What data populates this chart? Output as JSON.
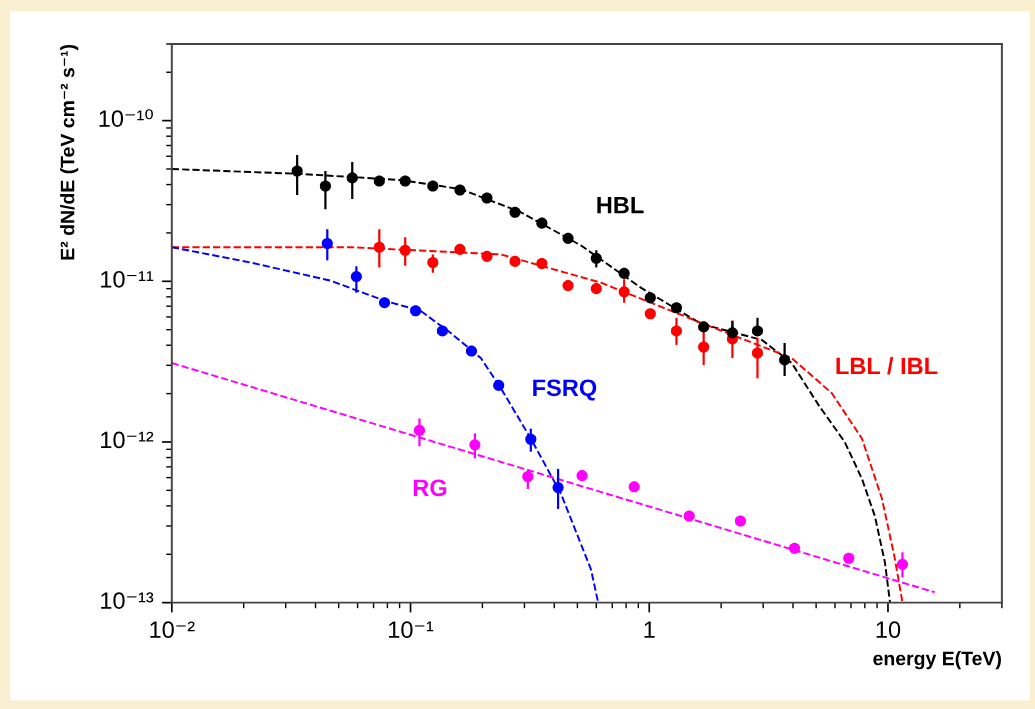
{
  "chart_data": {
    "type": "scatter",
    "xlabel": "energy E(TeV)",
    "ylabel": "E² dN/dE (TeV cm⁻² s⁻¹)",
    "log": "xy",
    "grid": false,
    "marker": "circle",
    "xlim": [
      0.01,
      30
    ],
    "ylim": [
      1e-13,
      3e-10
    ],
    "xticks": [
      {
        "value": 0.01,
        "label": "10⁻²"
      },
      {
        "value": 0.1,
        "label": "10⁻¹"
      },
      {
        "value": 1,
        "label": "1"
      },
      {
        "value": 10,
        "label": "10"
      }
    ],
    "yticks": [
      {
        "value": 1e-13,
        "label": "10⁻¹³"
      },
      {
        "value": 1e-12,
        "label": "10⁻¹²"
      },
      {
        "value": 1e-11,
        "label": "10⁻¹¹"
      },
      {
        "value": 1e-10,
        "label": "10⁻¹⁰"
      }
    ],
    "series": [
      {
        "name": "HBL",
        "color": "#000000",
        "x": [
          0.0335,
          0.044,
          0.057,
          0.074,
          0.095,
          0.124,
          0.161,
          0.209,
          0.274,
          0.355,
          0.457,
          0.6,
          0.785,
          1.01,
          1.3,
          1.69,
          2.23,
          2.84,
          3.69
        ],
        "values": [
          4.86e-11,
          3.92e-11,
          4.4e-11,
          4.21e-11,
          4.21e-11,
          3.92e-11,
          3.7e-11,
          3.3e-11,
          2.69e-11,
          2.3e-11,
          1.85e-11,
          1.39e-11,
          1.12e-11,
          7.9e-12,
          6.85e-12,
          5.2e-12,
          4.78e-12,
          4.91e-12,
          3.24e-12
        ],
        "errors": [
          [
            3.44e-11,
            6.12e-11
          ],
          [
            2.81e-11,
            4.86e-11
          ],
          [
            3.25e-11,
            5.53e-11
          ],
          null,
          null,
          null,
          null,
          null,
          null,
          null,
          null,
          [
            1.22e-11,
            1.56e-11
          ],
          null,
          null,
          null,
          null,
          [
            4.44e-12,
            5.68e-12
          ],
          [
            4.57e-12,
            5.93e-12
          ],
          [
            2.57e-12,
            4.13e-12
          ]
        ]
      },
      {
        "name": "LBL / IBL",
        "color": "#ff0000",
        "x": [
          0.074,
          0.095,
          0.124,
          0.161,
          0.209,
          0.274,
          0.355,
          0.457,
          0.6,
          0.785,
          1.01,
          1.3,
          1.69,
          2.23,
          2.84
        ],
        "values": [
          1.63e-11,
          1.56e-11,
          1.31e-11,
          1.58e-11,
          1.43e-11,
          1.33e-11,
          1.29e-11,
          9.4e-12,
          9e-12,
          8.6e-12,
          6.28e-12,
          4.91e-12,
          3.9e-12,
          4.38e-12,
          3.58e-12
        ],
        "errors": [
          [
            1.22e-11,
            2.11e-11
          ],
          [
            1.25e-11,
            1.88e-11
          ],
          [
            1.13e-11,
            1.47e-11
          ],
          null,
          null,
          null,
          null,
          null,
          null,
          [
            7.36e-12,
            1.03e-11
          ],
          null,
          [
            4.02e-12,
            5.93e-12
          ],
          [
            3.01e-12,
            4.91e-12
          ],
          [
            3.33e-12,
            5.68e-12
          ],
          [
            2.49e-12,
            4.44e-12
          ]
        ]
      },
      {
        "name": "FSRQ",
        "color": "#0000ff",
        "x": [
          0.0448,
          0.0593,
          0.0778,
          0.105,
          0.136,
          0.18,
          0.234,
          0.319,
          0.415
        ],
        "values": [
          1.72e-11,
          1.07e-11,
          7.36e-12,
          6.56e-12,
          4.91e-12,
          3.68e-12,
          2.25e-12,
          1.04e-12,
          5.2e-13
        ],
        "errors": [
          [
            1.35e-11,
            2.11e-11
          ],
          [
            8.5e-12,
            1.24e-11
          ],
          null,
          null,
          null,
          null,
          null,
          [
            8.7e-13,
            1.21e-12
          ],
          [
            3.83e-13,
            6.8e-13
          ]
        ]
      },
      {
        "name": "RG",
        "color": "#ff00ff",
        "x": [
          0.109,
          0.186,
          0.31,
          0.523,
          0.865,
          1.47,
          2.41,
          4.06,
          6.85,
          11.5
        ],
        "values": [
          1.18e-12,
          9.6e-13,
          6.1e-13,
          6.17e-13,
          5.26e-13,
          3.46e-13,
          3.22e-13,
          2.18e-13,
          1.89e-13,
          1.73e-13
        ],
        "errors": [
          [
            9.4e-13,
            1.4e-12
          ],
          [
            7.9e-13,
            1.13e-12
          ],
          [
            5.1e-13,
            6.6e-13
          ],
          null,
          null,
          null,
          null,
          null,
          null,
          [
            1.44e-13,
            2.06e-13
          ]
        ]
      },
      {
        "type": "line",
        "color": "#000000",
        "line_style": "dashed",
        "marker": "none",
        "x": [
          0.01,
          0.0345,
          0.0908,
          0.162,
          0.29,
          0.518,
          0.925,
          1.65,
          2.96,
          3.95,
          5.13,
          6.59,
          7.78,
          8.81,
          9.71,
          10.2
        ],
        "values": [
          5e-11,
          4.66e-11,
          4.27e-11,
          3.75e-11,
          2.69e-11,
          1.67e-11,
          9.1e-12,
          5.43e-12,
          4.32e-12,
          3.1e-12,
          1.69e-12,
          1e-12,
          5.9e-13,
          3.46e-13,
          1.78e-13,
          1e-13
        ]
      },
      {
        "type": "line",
        "color": "#ff0000",
        "line_style": "dashed",
        "marker": "none",
        "x": [
          0.01,
          0.056,
          0.239,
          0.628,
          1.65,
          3.95,
          5.82,
          7.78,
          9.44,
          10.7,
          11.5
        ],
        "values": [
          1.63e-11,
          1.63e-11,
          1.47e-11,
          9.8e-12,
          5.51e-12,
          3.33e-12,
          2.01e-12,
          1.05e-12,
          4.43e-13,
          1.86e-13,
          1e-13
        ]
      },
      {
        "type": "line",
        "color": "#0000ff",
        "line_style": "dashed",
        "marker": "none",
        "x": [
          0.01,
          0.0213,
          0.0461,
          0.0778,
          0.11,
          0.147,
          0.197,
          0.239,
          0.319,
          0.427,
          0.57,
          0.611
        ],
        "values": [
          1.63e-11,
          1.31e-11,
          1.01e-11,
          7.57e-12,
          6.56e-12,
          4.78e-12,
          3.33e-12,
          2.16e-12,
          1.05e-12,
          4.75e-13,
          1.61e-13,
          1e-13
        ]
      },
      {
        "type": "line",
        "color": "#ff00ff",
        "line_style": "dashed",
        "marker": "none",
        "x": [
          0.01,
          15.7
        ],
        "values": [
          3.1e-12,
          1.16e-13
        ]
      }
    ]
  }
}
